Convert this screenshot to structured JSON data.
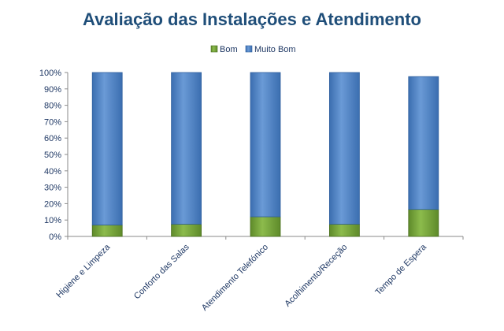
{
  "chart_data": {
    "type": "bar",
    "stacked": true,
    "percent_stacked": true,
    "title": "Avaliação das Instalações e Atendimento",
    "xlabel": "",
    "ylabel": "",
    "categories": [
      "Higiene e Limpeza",
      "Conforto das Salas",
      "Atendimento Telefónico",
      "Acolhimento/Receção",
      "Tempo de Espera"
    ],
    "series": [
      {
        "name": "Bom",
        "values": [
          7,
          7.5,
          12,
          7.5,
          16.5
        ],
        "color": "#76a03a"
      },
      {
        "name": "Muito Bom",
        "values": [
          93,
          92.5,
          88,
          92.5,
          81
        ],
        "color": "#4f81bd"
      }
    ],
    "ylim": [
      0,
      100
    ],
    "yticks": [
      "0%",
      "10%",
      "20%",
      "30%",
      "40%",
      "50%",
      "60%",
      "70%",
      "80%",
      "90%",
      "100%"
    ],
    "legend_position": "top",
    "grid": false
  }
}
